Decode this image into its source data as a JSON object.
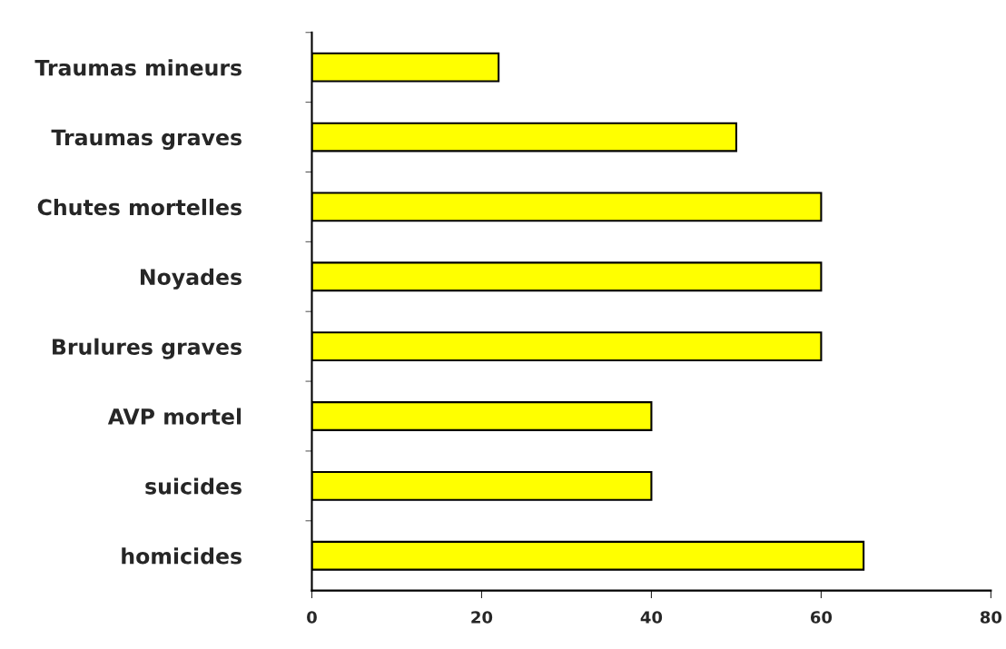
{
  "chart_data": {
    "type": "bar",
    "orientation": "horizontal",
    "categories": [
      "Traumas mineurs",
      "Traumas graves",
      "Chutes mortelles",
      "Noyades",
      "Brulures graves",
      "AVP mortel",
      "suicides",
      "homicides"
    ],
    "values": [
      22,
      50,
      60,
      60,
      60,
      40,
      40,
      65
    ],
    "color": "#ffff00",
    "xlim": [
      0,
      80
    ],
    "xticks": [
      0,
      20,
      40,
      60,
      80
    ],
    "grid": false
  }
}
